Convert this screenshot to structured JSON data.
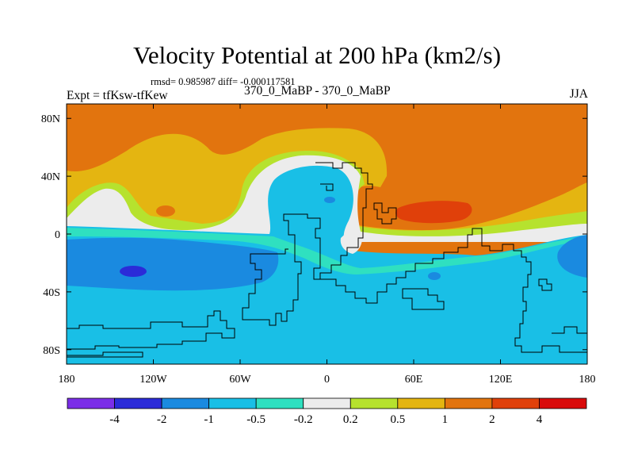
{
  "header": {
    "title": "Velocity Potential at 200 hPa (km2/s)",
    "stats": "rmsd= 0.985987 diff= -0.000117581",
    "expt": "Expt = tfKsw-tfKew",
    "case_pair": "370_0_MaBP - 370_0_MaBP",
    "season": "JJA"
  },
  "chart_data": {
    "type": "heatmap",
    "title": "Velocity Potential at 200 hPa (km2/s)",
    "subtitle": "rmsd= 0.985987 diff= -0.000117581",
    "xlabel": "",
    "ylabel": "",
    "xlim": [
      -180,
      180
    ],
    "ylim": [
      -90,
      90
    ],
    "x_ticks": [
      {
        "value": -180,
        "label": "180"
      },
      {
        "value": -120,
        "label": "120W"
      },
      {
        "value": -60,
        "label": "60W"
      },
      {
        "value": 0,
        "label": "0"
      },
      {
        "value": 60,
        "label": "60E"
      },
      {
        "value": 120,
        "label": "120E"
      },
      {
        "value": 180,
        "label": "180"
      }
    ],
    "y_ticks": [
      {
        "value": 80,
        "label": "80N"
      },
      {
        "value": 40,
        "label": "40N"
      },
      {
        "value": 0,
        "label": "0"
      },
      {
        "value": -40,
        "label": "40S"
      },
      {
        "value": -80,
        "label": "80S"
      }
    ],
    "colorbar": {
      "levels": [
        -4,
        -2,
        -1,
        -0.5,
        -0.2,
        0.2,
        0.5,
        1,
        2,
        4
      ],
      "level_labels": [
        "-4",
        "-2",
        "-1",
        "-0.5",
        "-0.2",
        "0.2",
        "0.5",
        "1",
        "2",
        "4"
      ],
      "colors": [
        "#7b2ee8",
        "#2b2bd8",
        "#1a8ae0",
        "#19bfe6",
        "#2fe0c0",
        "#ececec",
        "#b6e22e",
        "#e4b511",
        "#e2740e",
        "#e0400a",
        "#d90a0a"
      ]
    },
    "regions": [
      {
        "name": "north-polar-high",
        "level": "1 to 2",
        "lon": [
          -180,
          180
        ],
        "lat": [
          45,
          90
        ]
      },
      {
        "name": "subtropical-ring",
        "level": "0.5 to 1",
        "lon": [
          -180,
          180
        ],
        "lat": [
          5,
          50
        ]
      },
      {
        "name": "equatorial-band",
        "level": "-0.2 to 0.2",
        "lon": [
          -180,
          180
        ],
        "lat": [
          -5,
          10
        ]
      },
      {
        "name": "south-low",
        "level": "-1 to -0.5",
        "lon": [
          -180,
          180
        ],
        "lat": [
          -90,
          -5
        ]
      },
      {
        "name": "south-pacific-trough",
        "level": "-2 to -1",
        "lon": [
          -180,
          -60
        ],
        "lat": [
          -45,
          0
        ]
      },
      {
        "name": "south-pacific-core",
        "level": "-4 to -2",
        "lon": [
          -135,
          -125
        ],
        "lat": [
          -32,
          -22
        ]
      },
      {
        "name": "asian-max",
        "level": "2 to 4",
        "lon": [
          40,
          90
        ],
        "lat": [
          12,
          22
        ]
      }
    ]
  }
}
